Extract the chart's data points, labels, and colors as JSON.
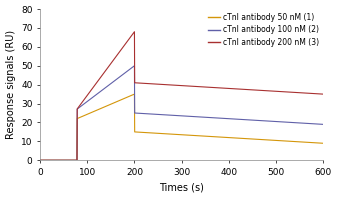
{
  "title": "",
  "xlabel": "Times (s)",
  "ylabel": "Response signals (RU)",
  "xlim": [
    0,
    600
  ],
  "ylim": [
    0,
    80
  ],
  "xticks": [
    0,
    100,
    200,
    300,
    400,
    500,
    600
  ],
  "yticks": [
    0,
    10,
    20,
    30,
    40,
    50,
    60,
    70,
    80
  ],
  "legend": [
    {
      "label": "cTnI antibody 50 nM (1)",
      "color": "#D4960A"
    },
    {
      "label": "cTnI antibody 100 nM (2)",
      "color": "#6060A8"
    },
    {
      "label": "cTnI antibody 200 nM (3)",
      "color": "#A83030"
    }
  ],
  "curves": [
    {
      "name": "50nM",
      "color": "#D4960A",
      "t_baseline_start": 0,
      "t_assoc_start": 78,
      "t_assoc_end": 200,
      "t_final": 600,
      "y_baseline": 0,
      "y_assoc_start": 22,
      "y_assoc_peak": 35,
      "y_jump_down": 15,
      "y_dissoc_end": 9
    },
    {
      "name": "100nM",
      "color": "#6060A8",
      "t_baseline_start": 0,
      "t_assoc_start": 78,
      "t_assoc_end": 200,
      "t_final": 600,
      "y_baseline": 0,
      "y_assoc_start": 27,
      "y_assoc_peak": 50,
      "y_jump_down": 25,
      "y_dissoc_end": 19
    },
    {
      "name": "200nM",
      "color": "#A83030",
      "t_baseline_start": 0,
      "t_assoc_start": 78,
      "t_assoc_end": 200,
      "t_final": 600,
      "y_baseline": 0,
      "y_assoc_start": 27,
      "y_assoc_peak": 68,
      "y_jump_down": 41,
      "y_dissoc_end": 35
    }
  ],
  "figsize": [
    3.37,
    1.98
  ],
  "dpi": 100,
  "background_color": "#ffffff",
  "font_size": 7
}
